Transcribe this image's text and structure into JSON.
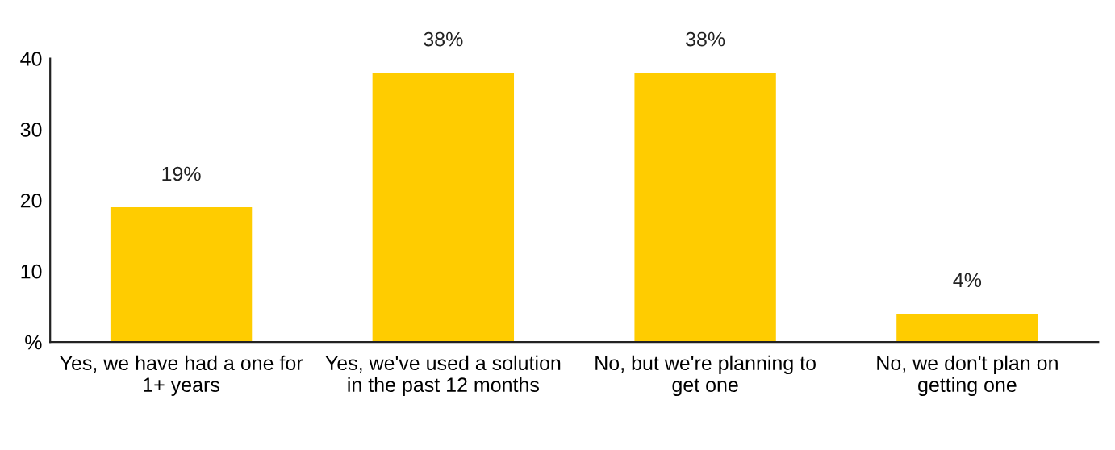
{
  "chart_data": {
    "type": "bar",
    "categories": [
      "Yes, we have had a one for 1+ years",
      "Yes, we've used a solution in the past 12 months",
      "No, but we're planning to get one",
      "No, we don't plan on getting one"
    ],
    "values": [
      19,
      38,
      38,
      4
    ],
    "value_labels": [
      "19%",
      "38%",
      "38%",
      "4%"
    ],
    "color": "#ffcc00",
    "ylim": [
      0,
      40
    ],
    "yticks": [
      {
        "value": 0,
        "label": "%"
      },
      10,
      20,
      30,
      40
    ],
    "grid": false
  }
}
